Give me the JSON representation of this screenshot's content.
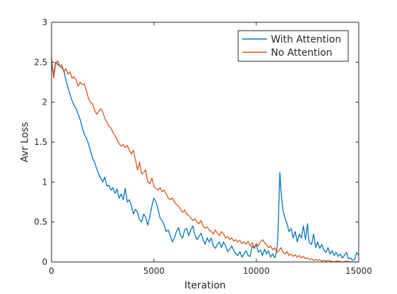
{
  "chart_data": {
    "type": "line",
    "title": "",
    "xlabel": "Iteration",
    "ylabel": "Avr Loss",
    "xlim": [
      0,
      15000
    ],
    "ylim": [
      0,
      3
    ],
    "xticks": [
      0,
      5000,
      10000,
      15000
    ],
    "xtick_labels": [
      "0",
      "5000",
      "10000",
      "15000"
    ],
    "yticks": [
      0,
      0.5,
      1,
      1.5,
      2,
      2.5,
      3
    ],
    "ytick_labels": [
      "0",
      "0.5",
      "1",
      "1.5",
      "2",
      "2.5",
      "3"
    ],
    "grid": false,
    "legend_position": "top-right",
    "series": [
      {
        "name": "With Attention",
        "color": "#0072BD",
        "points": [
          [
            0,
            2.45
          ],
          [
            100,
            2.35
          ],
          [
            200,
            2.5
          ],
          [
            350,
            2.46
          ],
          [
            500,
            2.43
          ],
          [
            600,
            2.4
          ],
          [
            700,
            2.28
          ],
          [
            800,
            2.18
          ],
          [
            900,
            2.1
          ],
          [
            1000,
            2.02
          ],
          [
            1100,
            1.96
          ],
          [
            1200,
            1.92
          ],
          [
            1300,
            1.85
          ],
          [
            1400,
            1.78
          ],
          [
            1500,
            1.68
          ],
          [
            1600,
            1.6
          ],
          [
            1700,
            1.55
          ],
          [
            1800,
            1.48
          ],
          [
            1900,
            1.4
          ],
          [
            2000,
            1.3
          ],
          [
            2100,
            1.25
          ],
          [
            2200,
            1.17
          ],
          [
            2300,
            1.1
          ],
          [
            2400,
            1.05
          ],
          [
            2500,
            1.0
          ],
          [
            2600,
            1.06
          ],
          [
            2700,
            0.95
          ],
          [
            2800,
            0.96
          ],
          [
            2900,
            0.9
          ],
          [
            3000,
            0.93
          ],
          [
            3100,
            0.86
          ],
          [
            3200,
            0.91
          ],
          [
            3300,
            0.8
          ],
          [
            3400,
            0.85
          ],
          [
            3500,
            0.78
          ],
          [
            3600,
            0.92
          ],
          [
            3700,
            0.75
          ],
          [
            3800,
            0.78
          ],
          [
            3900,
            0.7
          ],
          [
            4000,
            0.6
          ],
          [
            4100,
            0.66
          ],
          [
            4200,
            0.62
          ],
          [
            4300,
            0.53
          ],
          [
            4400,
            0.5
          ],
          [
            4500,
            0.6
          ],
          [
            4600,
            0.56
          ],
          [
            4700,
            0.46
          ],
          [
            4800,
            0.57
          ],
          [
            4900,
            0.7
          ],
          [
            5000,
            0.8
          ],
          [
            5100,
            0.75
          ],
          [
            5200,
            0.66
          ],
          [
            5300,
            0.55
          ],
          [
            5400,
            0.52
          ],
          [
            5500,
            0.46
          ],
          [
            5600,
            0.38
          ],
          [
            5700,
            0.4
          ],
          [
            5800,
            0.33
          ],
          [
            5900,
            0.25
          ],
          [
            6000,
            0.3
          ],
          [
            6100,
            0.38
          ],
          [
            6200,
            0.43
          ],
          [
            6300,
            0.33
          ],
          [
            6400,
            0.3
          ],
          [
            6500,
            0.4
          ],
          [
            6600,
            0.42
          ],
          [
            6700,
            0.33
          ],
          [
            6800,
            0.4
          ],
          [
            6900,
            0.45
          ],
          [
            7000,
            0.34
          ],
          [
            7100,
            0.28
          ],
          [
            7200,
            0.32
          ],
          [
            7300,
            0.36
          ],
          [
            7400,
            0.28
          ],
          [
            7500,
            0.22
          ],
          [
            7600,
            0.3
          ],
          [
            7700,
            0.25
          ],
          [
            7800,
            0.3
          ],
          [
            7900,
            0.2
          ],
          [
            8000,
            0.17
          ],
          [
            8100,
            0.22
          ],
          [
            8200,
            0.25
          ],
          [
            8300,
            0.18
          ],
          [
            8400,
            0.25
          ],
          [
            8500,
            0.2
          ],
          [
            8600,
            0.13
          ],
          [
            8700,
            0.16
          ],
          [
            8800,
            0.2
          ],
          [
            8900,
            0.14
          ],
          [
            9000,
            0.1
          ],
          [
            9100,
            0.08
          ],
          [
            9200,
            0.13
          ],
          [
            9300,
            0.06
          ],
          [
            9400,
            0.1
          ],
          [
            9500,
            0.14
          ],
          [
            9600,
            0.08
          ],
          [
            9700,
            0.07
          ],
          [
            9800,
            0.2
          ],
          [
            9900,
            0.17
          ],
          [
            10000,
            0.22
          ],
          [
            10100,
            0.12
          ],
          [
            10200,
            0.15
          ],
          [
            10300,
            0.08
          ],
          [
            10400,
            0.16
          ],
          [
            10500,
            0.1
          ],
          [
            10600,
            0.14
          ],
          [
            10700,
            0.06
          ],
          [
            10800,
            0.1
          ],
          [
            10900,
            0.05
          ],
          [
            11000,
            0.14
          ],
          [
            11050,
            0.3
          ],
          [
            11100,
            0.7
          ],
          [
            11150,
            1.12
          ],
          [
            11200,
            0.9
          ],
          [
            11300,
            0.65
          ],
          [
            11400,
            0.55
          ],
          [
            11500,
            0.48
          ],
          [
            11600,
            0.38
          ],
          [
            11700,
            0.42
          ],
          [
            11800,
            0.3
          ],
          [
            11900,
            0.38
          ],
          [
            12000,
            0.25
          ],
          [
            12100,
            0.35
          ],
          [
            12200,
            0.3
          ],
          [
            12300,
            0.45
          ],
          [
            12400,
            0.28
          ],
          [
            12500,
            0.48
          ],
          [
            12550,
            0.3
          ],
          [
            12600,
            0.24
          ],
          [
            12700,
            0.22
          ],
          [
            12800,
            0.35
          ],
          [
            12900,
            0.18
          ],
          [
            13000,
            0.25
          ],
          [
            13100,
            0.17
          ],
          [
            13200,
            0.22
          ],
          [
            13300,
            0.15
          ],
          [
            13400,
            0.12
          ],
          [
            13500,
            0.18
          ],
          [
            13600,
            0.1
          ],
          [
            13700,
            0.14
          ],
          [
            13800,
            0.08
          ],
          [
            13900,
            0.12
          ],
          [
            14000,
            0.07
          ],
          [
            14100,
            0.1
          ],
          [
            14200,
            0.05
          ],
          [
            14300,
            0.08
          ],
          [
            14400,
            0.12
          ],
          [
            14500,
            0.04
          ],
          [
            14600,
            0.05
          ],
          [
            14700,
            0.02
          ],
          [
            14800,
            0.03
          ],
          [
            14900,
            0.12
          ],
          [
            15000,
            0.08
          ]
        ]
      },
      {
        "name": "No Attention",
        "color": "#D95319",
        "points": [
          [
            0,
            2.57
          ],
          [
            100,
            2.3
          ],
          [
            200,
            2.48
          ],
          [
            300,
            2.52
          ],
          [
            400,
            2.45
          ],
          [
            500,
            2.47
          ],
          [
            600,
            2.38
          ],
          [
            700,
            2.42
          ],
          [
            800,
            2.35
          ],
          [
            900,
            2.38
          ],
          [
            1000,
            2.3
          ],
          [
            1100,
            2.32
          ],
          [
            1200,
            2.28
          ],
          [
            1300,
            2.2
          ],
          [
            1400,
            2.25
          ],
          [
            1500,
            2.22
          ],
          [
            1600,
            2.23
          ],
          [
            1700,
            2.15
          ],
          [
            1800,
            2.05
          ],
          [
            1900,
            2.0
          ],
          [
            2000,
            1.98
          ],
          [
            2100,
            1.9
          ],
          [
            2200,
            1.85
          ],
          [
            2300,
            1.88
          ],
          [
            2400,
            1.92
          ],
          [
            2500,
            1.88
          ],
          [
            2600,
            1.8
          ],
          [
            2700,
            1.75
          ],
          [
            2800,
            1.7
          ],
          [
            2900,
            1.68
          ],
          [
            3000,
            1.62
          ],
          [
            3100,
            1.58
          ],
          [
            3200,
            1.53
          ],
          [
            3300,
            1.48
          ],
          [
            3400,
            1.45
          ],
          [
            3500,
            1.47
          ],
          [
            3600,
            1.43
          ],
          [
            3700,
            1.46
          ],
          [
            3800,
            1.4
          ],
          [
            3900,
            1.35
          ],
          [
            4000,
            1.4
          ],
          [
            4100,
            1.28
          ],
          [
            4200,
            1.15
          ],
          [
            4300,
            1.25
          ],
          [
            4400,
            1.1
          ],
          [
            4500,
            1.12
          ],
          [
            4600,
            1.15
          ],
          [
            4700,
            1.0
          ],
          [
            4800,
            0.98
          ],
          [
            4900,
            1.05
          ],
          [
            5000,
            0.95
          ],
          [
            5100,
            0.92
          ],
          [
            5200,
            0.9
          ],
          [
            5300,
            0.93
          ],
          [
            5400,
            0.88
          ],
          [
            5500,
            0.9
          ],
          [
            5600,
            0.85
          ],
          [
            5700,
            0.8
          ],
          [
            5800,
            0.78
          ],
          [
            5900,
            0.8
          ],
          [
            6000,
            0.75
          ],
          [
            6100,
            0.72
          ],
          [
            6200,
            0.7
          ],
          [
            6300,
            0.66
          ],
          [
            6400,
            0.62
          ],
          [
            6500,
            0.65
          ],
          [
            6600,
            0.6
          ],
          [
            6700,
            0.58
          ],
          [
            6800,
            0.55
          ],
          [
            6900,
            0.52
          ],
          [
            7000,
            0.54
          ],
          [
            7100,
            0.5
          ],
          [
            7200,
            0.48
          ],
          [
            7300,
            0.52
          ],
          [
            7400,
            0.45
          ],
          [
            7500,
            0.42
          ],
          [
            7600,
            0.44
          ],
          [
            7700,
            0.4
          ],
          [
            7800,
            0.38
          ],
          [
            7900,
            0.35
          ],
          [
            8000,
            0.4
          ],
          [
            8100,
            0.36
          ],
          [
            8200,
            0.33
          ],
          [
            8300,
            0.38
          ],
          [
            8400,
            0.35
          ],
          [
            8500,
            0.3
          ],
          [
            8600,
            0.32
          ],
          [
            8700,
            0.28
          ],
          [
            8800,
            0.3
          ],
          [
            8900,
            0.26
          ],
          [
            9000,
            0.28
          ],
          [
            9100,
            0.25
          ],
          [
            9200,
            0.27
          ],
          [
            9300,
            0.23
          ],
          [
            9400,
            0.25
          ],
          [
            9500,
            0.22
          ],
          [
            9600,
            0.26
          ],
          [
            9700,
            0.2
          ],
          [
            9800,
            0.24
          ],
          [
            9900,
            0.18
          ],
          [
            10000,
            0.23
          ],
          [
            10100,
            0.2
          ],
          [
            10200,
            0.25
          ],
          [
            10300,
            0.28
          ],
          [
            10400,
            0.24
          ],
          [
            10500,
            0.22
          ],
          [
            10600,
            0.18
          ],
          [
            10700,
            0.2
          ],
          [
            10800,
            0.15
          ],
          [
            10900,
            0.18
          ],
          [
            11000,
            0.12
          ],
          [
            11100,
            0.14
          ],
          [
            11200,
            0.18
          ],
          [
            11300,
            0.12
          ],
          [
            11400,
            0.1
          ],
          [
            11500,
            0.13
          ],
          [
            11600,
            0.08
          ],
          [
            11700,
            0.1
          ],
          [
            11800,
            0.07
          ],
          [
            11900,
            0.09
          ],
          [
            12000,
            0.06
          ],
          [
            12100,
            0.08
          ],
          [
            12200,
            0.05
          ],
          [
            12300,
            0.07
          ],
          [
            12400,
            0.04
          ],
          [
            12500,
            0.05
          ],
          [
            12600,
            0.03
          ],
          [
            12700,
            0.04
          ],
          [
            12800,
            0.02
          ],
          [
            12900,
            0.03
          ],
          [
            13000,
            0.02
          ],
          [
            13100,
            0.03
          ],
          [
            13200,
            0.01
          ],
          [
            13300,
            0.02
          ],
          [
            13400,
            0.01
          ],
          [
            13500,
            0.02
          ],
          [
            13600,
            0.01
          ],
          [
            13700,
            0.01
          ],
          [
            13800,
            0.0
          ],
          [
            13900,
            0.01
          ],
          [
            14000,
            0.01
          ],
          [
            14200,
            0.0
          ],
          [
            14400,
            0.01
          ],
          [
            14600,
            0.0
          ],
          [
            14800,
            0.0
          ],
          [
            15000,
            0.0
          ]
        ]
      }
    ]
  }
}
